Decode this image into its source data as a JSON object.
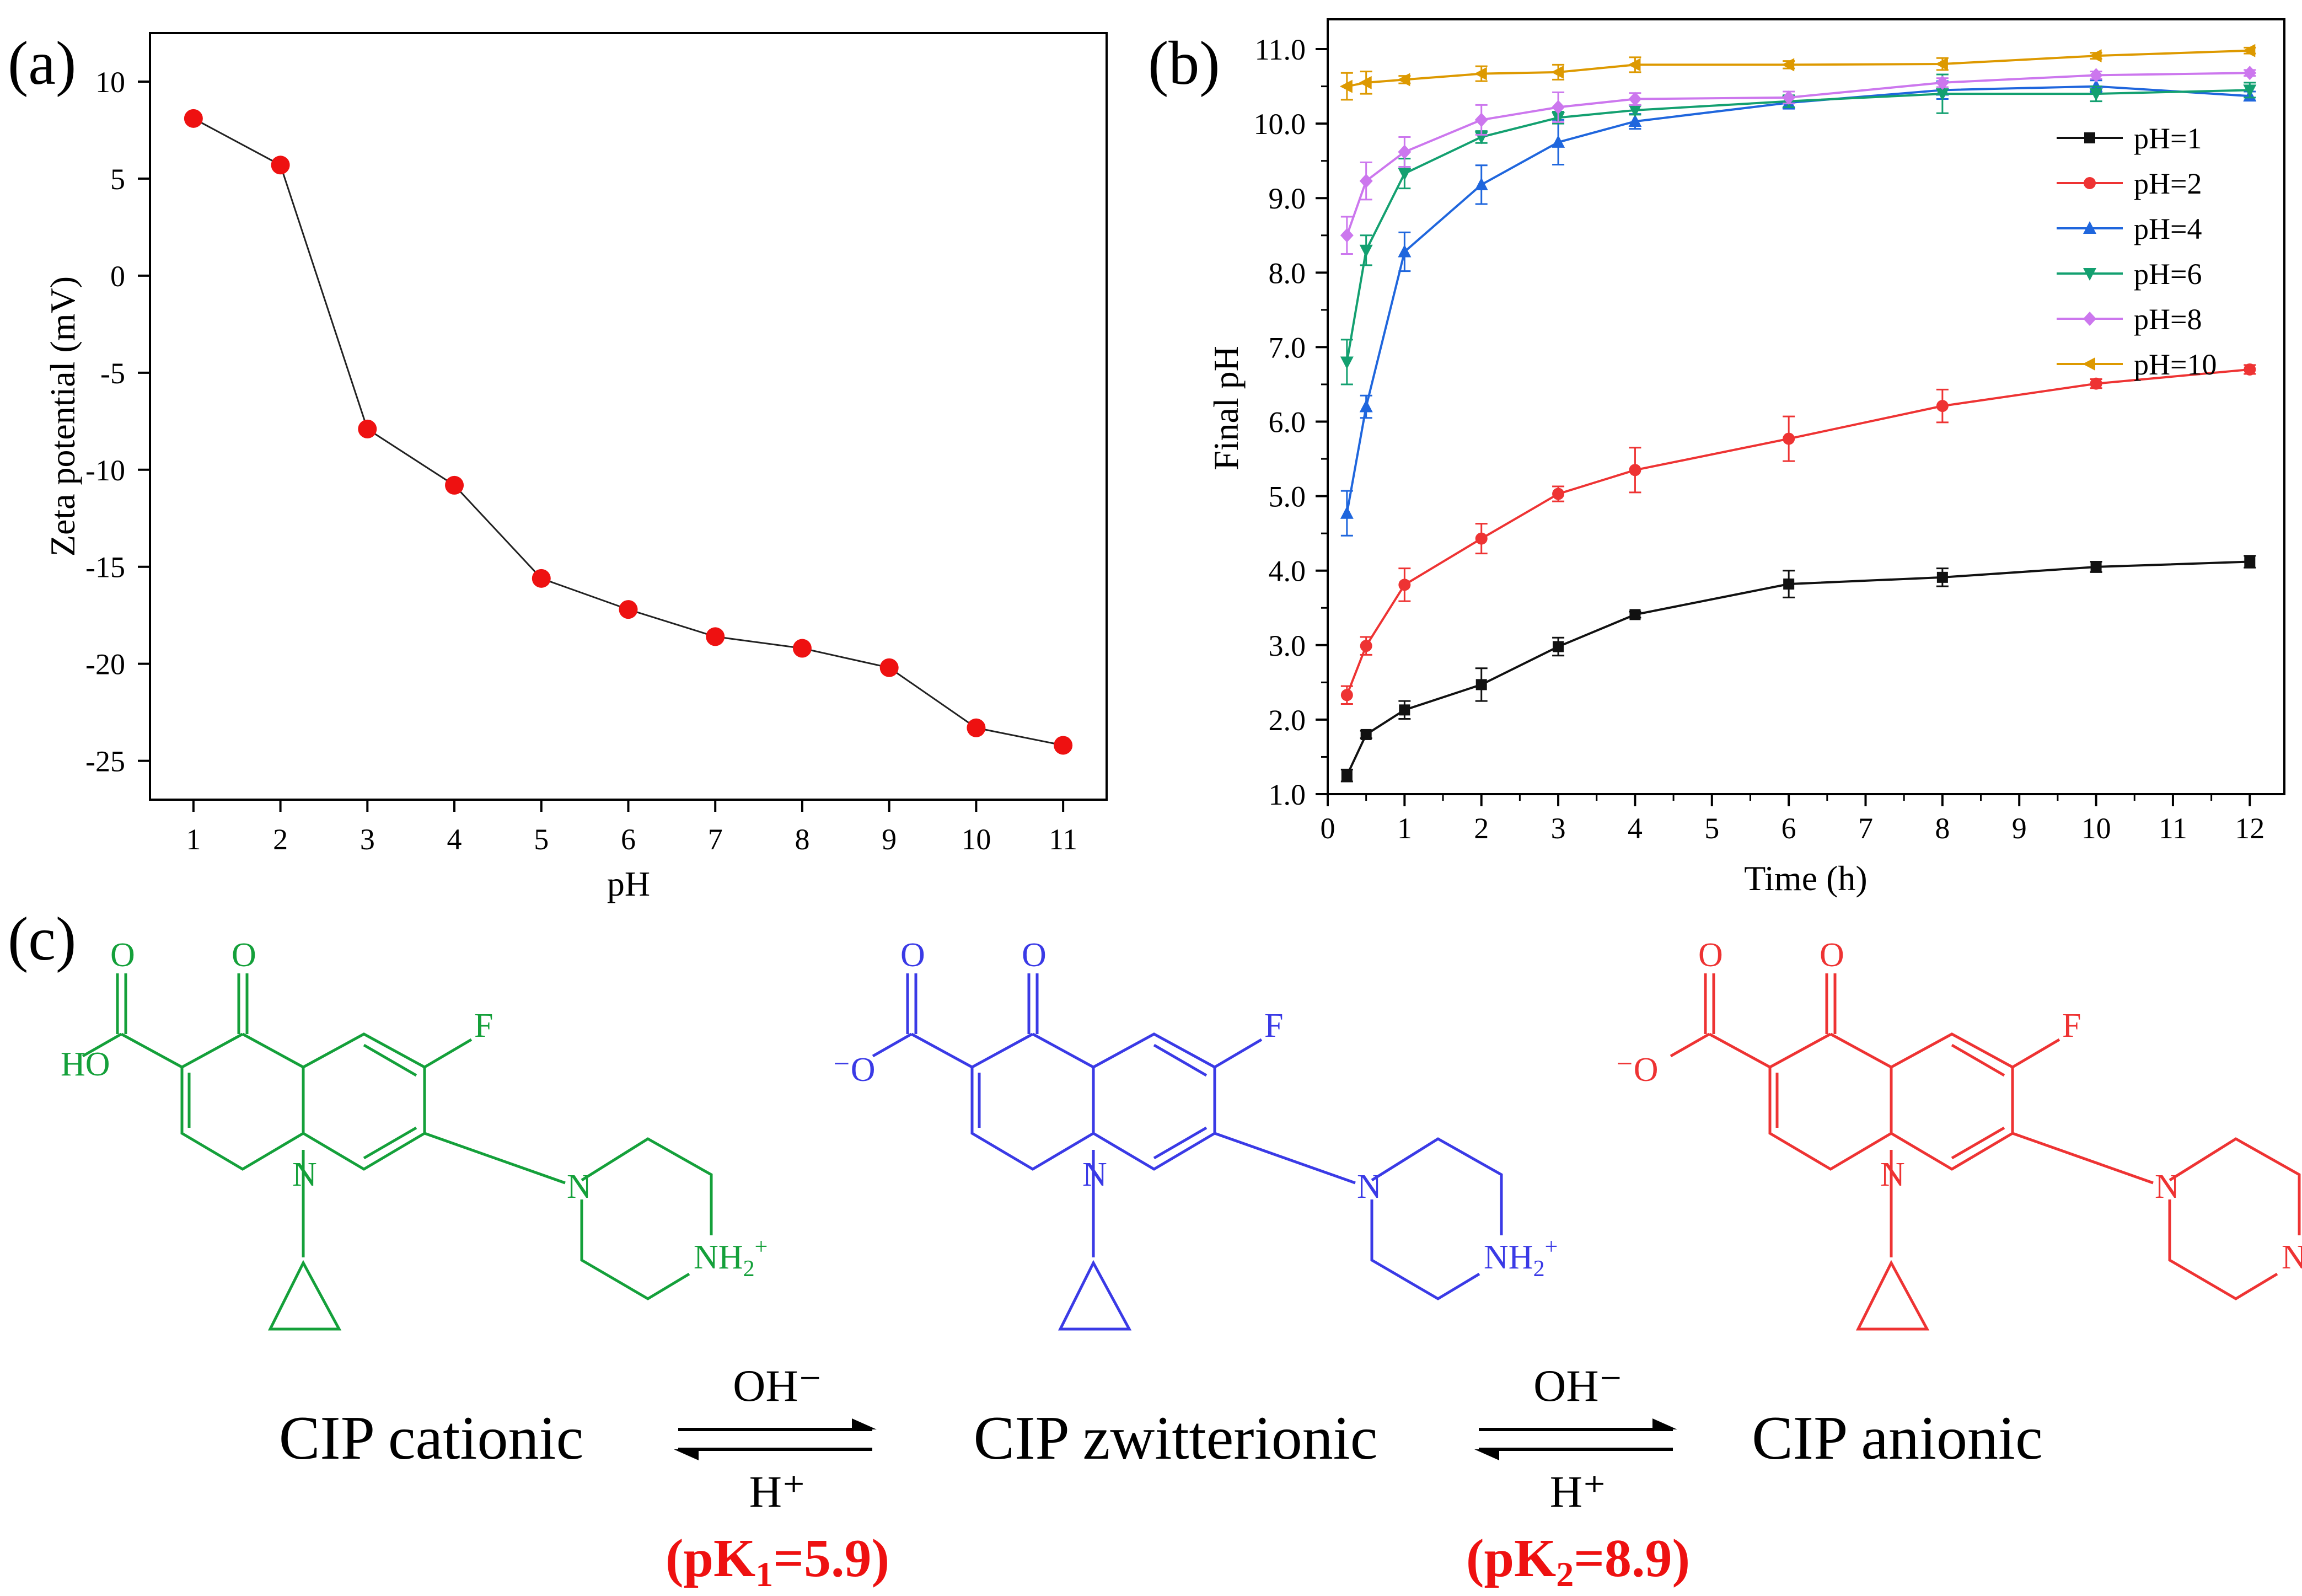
{
  "panel_labels": {
    "a": "(a)",
    "b": "(b)",
    "c": "(c)"
  },
  "colors": {
    "marker_a": "#ee1111",
    "line_a": "#222222",
    "series": [
      "#111111",
      "#ee3333",
      "#1f66dd",
      "#13a070",
      "#cc77ee",
      "#dd9900"
    ],
    "cationic": "#14a03a",
    "zwitterionic": "#3a3ae6",
    "anionic": "#ee3333",
    "pk": "#ee1111"
  },
  "chart_data": [
    {
      "type": "scatter",
      "panel": "a",
      "title": "",
      "xlabel": "pH",
      "ylabel": "Zeta potential (mV)",
      "xlim": [
        0.5,
        11.5
      ],
      "ylim": [
        -27,
        12.5
      ],
      "xticks": [
        1,
        2,
        3,
        4,
        5,
        6,
        7,
        8,
        9,
        10,
        11
      ],
      "xtick_labels": [
        "1",
        "2",
        "3",
        "4",
        "5",
        "6",
        "7",
        "8",
        "9",
        "10",
        "11"
      ],
      "yticks": [
        10,
        5,
        0,
        -5,
        -10,
        -15,
        -20,
        -25
      ],
      "ytick_labels": [
        "10",
        "5",
        "0",
        "-5",
        "-10",
        "-15",
        "-20",
        "-25"
      ],
      "x": [
        1,
        2,
        3,
        4,
        5,
        6,
        7,
        8,
        9,
        10,
        11
      ],
      "y": [
        8.1,
        5.7,
        -7.9,
        -10.8,
        -15.6,
        -17.2,
        -18.6,
        -19.2,
        -20.2,
        -23.3,
        -24.2
      ],
      "connected": true
    },
    {
      "type": "line",
      "panel": "b",
      "title": "",
      "xlabel": "Time (h)",
      "ylabel": "Final pH",
      "xlim": [
        0,
        12.45
      ],
      "ylim": [
        1.0,
        11.4
      ],
      "xticks": [
        0,
        1,
        2,
        3,
        4,
        5,
        6,
        7,
        8,
        9,
        10,
        11,
        12
      ],
      "xtick_labels": [
        "0",
        "1",
        "2",
        "3",
        "4",
        "5",
        "6",
        "7",
        "8",
        "9",
        "10",
        "11",
        "12"
      ],
      "yticks": [
        1,
        2,
        3,
        4,
        5,
        6,
        7,
        8,
        9,
        10,
        11
      ],
      "ytick_labels": [
        "1.0",
        "2.0",
        "3.0",
        "4.0",
        "5.0",
        "6.0",
        "7.0",
        "8.0",
        "9.0",
        "10.0",
        "11.0"
      ],
      "legend_position": "top-right",
      "x": [
        0.25,
        0.5,
        1,
        2,
        3,
        4,
        6,
        8,
        10,
        12
      ],
      "series": [
        {
          "name": "pH=1",
          "marker": "square",
          "values": [
            1.25,
            1.8,
            2.13,
            2.47,
            2.98,
            3.41,
            3.82,
            3.91,
            4.05,
            4.12
          ],
          "errors": [
            0.08,
            0.05,
            0.12,
            0.22,
            0.12,
            0.04,
            0.18,
            0.12,
            0.07,
            0.08
          ]
        },
        {
          "name": "pH=2",
          "marker": "circle",
          "values": [
            2.33,
            2.99,
            3.81,
            4.43,
            5.03,
            5.35,
            5.77,
            6.21,
            6.51,
            6.7
          ],
          "errors": [
            0.12,
            0.12,
            0.22,
            0.2,
            0.1,
            0.3,
            0.3,
            0.22,
            0.06,
            0.06
          ]
        },
        {
          "name": "pH=4",
          "marker": "triangle-up",
          "values": [
            4.77,
            6.2,
            8.28,
            9.18,
            9.75,
            10.03,
            10.28,
            10.45,
            10.5,
            10.37
          ],
          "errors": [
            0.3,
            0.15,
            0.26,
            0.26,
            0.3,
            0.1,
            0.08,
            0.12,
            0.08,
            0.06
          ]
        },
        {
          "name": "pH=6",
          "marker": "triangle-down",
          "values": [
            6.8,
            8.3,
            9.33,
            9.82,
            10.08,
            10.18,
            10.3,
            10.4,
            10.4,
            10.45
          ],
          "errors": [
            0.3,
            0.2,
            0.2,
            0.08,
            0.08,
            0.06,
            0.08,
            0.26,
            0.1,
            0.1
          ]
        },
        {
          "name": "pH=8",
          "marker": "diamond",
          "values": [
            8.5,
            9.23,
            9.62,
            10.05,
            10.22,
            10.33,
            10.35,
            10.55,
            10.65,
            10.68
          ],
          "errors": [
            0.25,
            0.25,
            0.2,
            0.2,
            0.2,
            0.08,
            0.08,
            0.06,
            0.05,
            0.04
          ]
        },
        {
          "name": "pH=10",
          "marker": "triangle-left",
          "values": [
            10.5,
            10.55,
            10.59,
            10.67,
            10.69,
            10.79,
            10.79,
            10.8,
            10.91,
            10.98
          ],
          "errors": [
            0.18,
            0.15,
            0.05,
            0.1,
            0.1,
            0.1,
            0.05,
            0.08,
            0.04,
            0.04
          ]
        }
      ]
    }
  ],
  "scheme": {
    "species": [
      "CIP cationic",
      "CIP zwitterionic",
      "CIP anionic"
    ],
    "arrows": [
      {
        "top": "OH⁻",
        "bottom": "H⁺",
        "pk_prefix": "(pK",
        "pk_sub": "1",
        "pk_suffix": "=5.9)"
      },
      {
        "top": "OH⁻",
        "bottom": "H⁺",
        "pk_prefix": "(pK",
        "pk_sub": "2",
        "pk_suffix": "=8.9)"
      }
    ],
    "atoms": {
      "o": "O",
      "f": "F",
      "n": "N",
      "ho": "HO",
      "o_minus": "⁻O",
      "nh2_plus_main": "NH",
      "nh2_plus_sub": "2",
      "nh2_plus_sup": "+",
      "nh": "NH"
    }
  }
}
